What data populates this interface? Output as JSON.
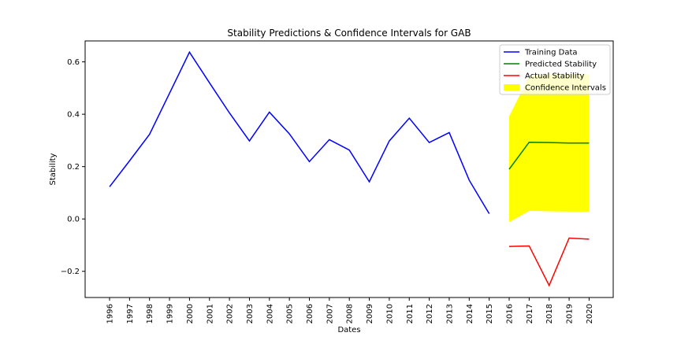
{
  "chart_data": {
    "type": "line",
    "title": "Stability Predictions & Confidence Intervals for GAB",
    "xlabel": "Dates",
    "ylabel": "Stability",
    "x": [
      "1996",
      "1997",
      "1998",
      "1999",
      "2000",
      "2001",
      "2002",
      "2003",
      "2004",
      "2005",
      "2006",
      "2007",
      "2008",
      "2009",
      "2010",
      "2011",
      "2012",
      "2013",
      "2014",
      "2015",
      "2016",
      "2017",
      "2018",
      "2019",
      "2020"
    ],
    "ylim": [
      -0.3,
      0.68
    ],
    "yticks": [
      -0.2,
      0.0,
      0.2,
      0.4,
      0.6
    ],
    "yticklabels": [
      "−0.2",
      "0.0",
      "0.2",
      "0.4",
      "0.6"
    ],
    "grid": false,
    "legend_position": "top-right",
    "series": [
      {
        "name": "Training Data",
        "color": "#0000ff",
        "x": [
          "1996",
          "1997",
          "1998",
          "1999",
          "2000",
          "2001",
          "2002",
          "2003",
          "2004",
          "2005",
          "2006",
          "2007",
          "2008",
          "2009",
          "2010",
          "2011",
          "2012",
          "2013",
          "2014",
          "2015"
        ],
        "values": [
          0.123,
          0.222,
          0.323,
          0.48,
          0.637,
          0.52,
          0.405,
          0.298,
          0.408,
          0.325,
          0.219,
          0.303,
          0.263,
          0.142,
          0.298,
          0.385,
          0.292,
          0.33,
          0.148,
          0.02
        ]
      },
      {
        "name": "Predicted Stability",
        "color": "#008000",
        "x": [
          "2016",
          "2017",
          "2018",
          "2019",
          "2020"
        ],
        "values": [
          0.19,
          0.293,
          0.292,
          0.29,
          0.29
        ]
      },
      {
        "name": "Actual Stability",
        "color": "#ff0000",
        "x": [
          "2016",
          "2017",
          "2018",
          "2019",
          "2020"
        ],
        "values": [
          -0.105,
          -0.103,
          -0.254,
          -0.073,
          -0.077
        ]
      }
    ],
    "confidence_interval": {
      "name": "Confidence Intervals",
      "color": "#ffff00",
      "x": [
        "2016",
        "2017",
        "2018",
        "2019",
        "2020"
      ],
      "lower": [
        -0.012,
        0.031,
        0.029,
        0.028,
        0.028
      ],
      "upper": [
        0.392,
        0.545,
        0.553,
        0.553,
        0.553
      ]
    }
  }
}
